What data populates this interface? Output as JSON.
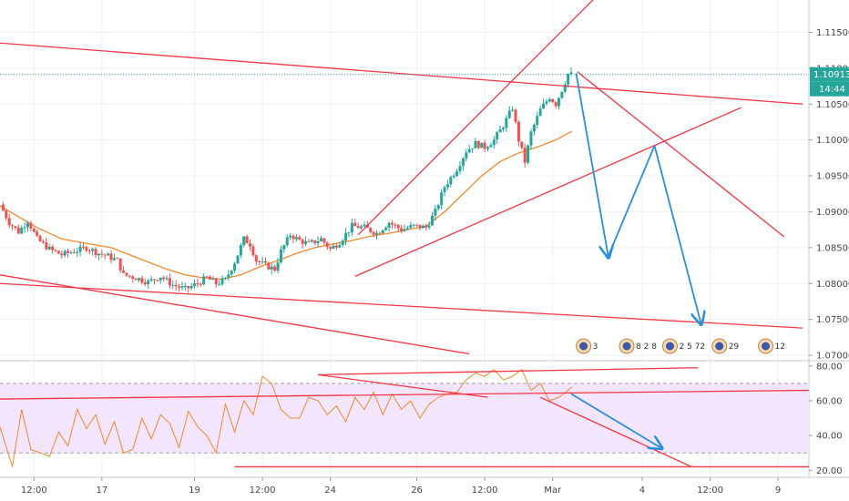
{
  "chart_data": [
    {
      "type": "candlestick",
      "title": "",
      "ylim": [
        1.0695,
        1.1195
      ],
      "y_ticks": [
        {
          "value": 1.115,
          "label": "1.11500"
        },
        {
          "value": 1.11,
          "label": "1.11000"
        },
        {
          "value": 1.105,
          "label": "1.10500"
        },
        {
          "value": 1.1,
          "label": "1.10000"
        },
        {
          "value": 1.095,
          "label": "1.09500"
        },
        {
          "value": 1.09,
          "label": "1.09000"
        },
        {
          "value": 1.085,
          "label": "1.08500"
        },
        {
          "value": 1.08,
          "label": "1.08000"
        },
        {
          "value": 1.075,
          "label": "1.07500"
        },
        {
          "value": 1.07,
          "label": "1.07000"
        }
      ],
      "current_price": {
        "value": 1.10913,
        "label": "1.10913",
        "countdown": "14:44",
        "color": "#26a69a"
      },
      "up_color": "#26a69a",
      "down_color": "#ef5350",
      "ma_color": "#f0892b",
      "trendline_color": "#f23645",
      "projection_color": "#2a8fd6",
      "price_path": [
        [
          0,
          1.091
        ],
        [
          1.5,
          1.0885
        ],
        [
          3,
          1.0872
        ],
        [
          4.5,
          1.0888
        ],
        [
          6,
          1.0862
        ],
        [
          8,
          1.0848
        ],
        [
          10,
          1.084
        ],
        [
          12,
          1.0845
        ],
        [
          14,
          1.085
        ],
        [
          16,
          1.0842
        ],
        [
          17.5,
          1.0838
        ],
        [
          19,
          1.0832
        ],
        [
          20,
          1.0812
        ],
        [
          22,
          1.0808
        ],
        [
          24,
          1.0802
        ],
        [
          26,
          1.081
        ],
        [
          28,
          1.0798
        ],
        [
          30,
          1.0792
        ],
        [
          32,
          1.08
        ],
        [
          33.5,
          1.0808
        ],
        [
          35,
          1.08
        ],
        [
          36.5,
          1.0805
        ],
        [
          38,
          1.083
        ],
        [
          39.5,
          1.0862
        ],
        [
          40.5,
          1.0855
        ],
        [
          41.5,
          1.0832
        ],
        [
          43,
          1.0825
        ],
        [
          44.5,
          1.082
        ],
        [
          45.5,
          1.0845
        ],
        [
          47,
          1.0868
        ],
        [
          48.5,
          1.086
        ],
        [
          50,
          1.0855
        ],
        [
          52,
          1.0862
        ],
        [
          53.5,
          1.0848
        ],
        [
          55,
          1.0858
        ],
        [
          57,
          1.088
        ],
        [
          59,
          1.0878
        ],
        [
          61,
          1.087
        ],
        [
          63,
          1.0885
        ],
        [
          65,
          1.0875
        ],
        [
          67,
          1.088
        ],
        [
          69,
          1.0878
        ],
        [
          70.5,
          1.09
        ],
        [
          72,
          1.0935
        ],
        [
          74,
          1.096
        ],
        [
          75.5,
          1.0985
        ],
        [
          77,
          1.0995
        ],
        [
          78.5,
          1.099
        ],
        [
          80,
          1.1
        ],
        [
          81.5,
          1.102
        ],
        [
          83,
          1.1045
        ],
        [
          84,
          1.1
        ],
        [
          85,
          1.097
        ],
        [
          86,
          1.101
        ],
        [
          87.5,
          1.1042
        ],
        [
          89,
          1.106
        ],
        [
          90,
          1.105
        ],
        [
          91,
          1.107
        ],
        [
          92,
          1.1092
        ],
        [
          92.6,
          1.1091
        ]
      ],
      "moving_average": [
        [
          0,
          1.0908
        ],
        [
          3,
          1.0893
        ],
        [
          6,
          1.0878
        ],
        [
          10,
          1.0862
        ],
        [
          14,
          1.0856
        ],
        [
          18,
          1.085
        ],
        [
          21,
          1.084
        ],
        [
          24,
          1.083
        ],
        [
          27,
          1.082
        ],
        [
          30,
          1.0812
        ],
        [
          33,
          1.0808
        ],
        [
          36,
          1.0806
        ],
        [
          39,
          1.0812
        ],
        [
          42,
          1.0823
        ],
        [
          45,
          1.0832
        ],
        [
          48,
          1.0842
        ],
        [
          51,
          1.085
        ],
        [
          54,
          1.0855
        ],
        [
          57,
          1.086
        ],
        [
          60,
          1.0866
        ],
        [
          63,
          1.087
        ],
        [
          66,
          1.0875
        ],
        [
          69,
          1.088
        ],
        [
          72,
          1.09
        ],
        [
          75,
          1.0925
        ],
        [
          78,
          1.095
        ],
        [
          81,
          1.097
        ],
        [
          84,
          1.0982
        ],
        [
          87,
          1.099
        ],
        [
          90,
          1.1
        ],
        [
          92.6,
          1.1012
        ]
      ],
      "trendlines": [
        {
          "from": [
            0,
            1.1135
          ],
          "to": [
            130,
            1.105
          ]
        },
        {
          "from": [
            0,
            1.0812
          ],
          "to": [
            76,
            1.0702
          ]
        },
        {
          "from": [
            0,
            1.08
          ],
          "to": [
            130,
            1.0738
          ]
        },
        {
          "from": [
            58,
            1.0868
          ],
          "to": [
            96,
            1.1195
          ]
        },
        {
          "from": [
            57.5,
            1.081
          ],
          "to": [
            120,
            1.1045
          ]
        },
        {
          "from": [
            93.5,
            1.1095
          ],
          "to": [
            127,
            1.0865
          ]
        }
      ],
      "projection_path": [
        [
          93.3,
          1.1093
        ],
        [
          98.5,
          1.0838
        ],
        [
          106,
          1.0992
        ],
        [
          113.5,
          1.0745
        ]
      ],
      "event_markers": [
        {
          "x": 94.5,
          "label": "3"
        },
        {
          "x": 101.5,
          "label": "8 2 8"
        },
        {
          "x": 108.5,
          "label": "2 5 72"
        },
        {
          "x": 116.5,
          "label": "29"
        },
        {
          "x": 124,
          "label": "12"
        }
      ]
    },
    {
      "type": "line",
      "title": "",
      "ylim": [
        17,
        82
      ],
      "y_ticks": [
        {
          "value": 80,
          "label": "80.00"
        },
        {
          "value": 60,
          "label": "60.00"
        },
        {
          "value": 40,
          "label": "40.00"
        },
        {
          "value": 20,
          "label": "20.00"
        }
      ],
      "band": {
        "upper": 70,
        "lower": 30,
        "fill": "#f3e5fb",
        "line_color": "#a0a0a0"
      },
      "line_color": "#f0892b",
      "series": [
        {
          "name": "",
          "x": [
            0,
            2,
            3.5,
            5,
            6.5,
            8,
            9.5,
            11,
            12.5,
            14,
            15.5,
            17,
            18.5,
            20,
            21.5,
            23,
            24.5,
            26,
            27.5,
            29,
            30.5,
            32,
            33.5,
            35,
            36.5,
            38,
            39.5,
            41,
            42.5,
            44,
            45.5,
            47,
            48.5,
            50,
            51.5,
            53,
            54.5,
            56,
            57.5,
            59,
            60.5,
            62,
            63.5,
            65,
            66.5,
            68,
            69.5,
            71,
            72.5,
            74,
            75.5,
            77,
            78.5,
            80,
            81.5,
            83,
            84.5,
            86,
            87.5,
            89,
            90.5,
            92,
            92.6
          ],
          "values": [
            45,
            22,
            55,
            32,
            30,
            28,
            42,
            34,
            55,
            44,
            52,
            35,
            48,
            30,
            32,
            50,
            38,
            52,
            47,
            33,
            54,
            45,
            40,
            30,
            58,
            42,
            60,
            52,
            74,
            70,
            55,
            50,
            50,
            62,
            60,
            52,
            57,
            48,
            62,
            55,
            65,
            52,
            64,
            55,
            60,
            50,
            58,
            62,
            64,
            65,
            72,
            76,
            74,
            78,
            72,
            74,
            78,
            66,
            70,
            60,
            62,
            66,
            68
          ]
        }
      ],
      "trendlines": [
        {
          "from": [
            0,
            61
          ],
          "to": [
            131,
            66
          ]
        },
        {
          "from": [
            51.5,
            75
          ],
          "to": [
            113,
            79
          ]
        },
        {
          "from": [
            51.5,
            75
          ],
          "to": [
            79,
            62
          ]
        },
        {
          "from": [
            87.5,
            62
          ],
          "to": [
            112,
            22
          ]
        },
        {
          "from": [
            38,
            22
          ],
          "to": [
            131,
            22
          ]
        }
      ],
      "projection_path": [
        [
          92.5,
          64
        ],
        [
          107,
          33
        ]
      ]
    }
  ],
  "x_axis": {
    "ticks": [
      {
        "x": 5.5,
        "label": "12:00"
      },
      {
        "x": 16.5,
        "label": "17"
      },
      {
        "x": 31.5,
        "label": "19"
      },
      {
        "x": 42.5,
        "label": "12:00"
      },
      {
        "x": 53.5,
        "label": "24"
      },
      {
        "x": 67.5,
        "label": "26"
      },
      {
        "x": 78.5,
        "label": "12:00"
      },
      {
        "x": 89.5,
        "label": "Mar"
      },
      {
        "x": 104,
        "label": "4"
      },
      {
        "x": 115,
        "label": "12:00"
      },
      {
        "x": 126,
        "label": "9"
      }
    ]
  }
}
